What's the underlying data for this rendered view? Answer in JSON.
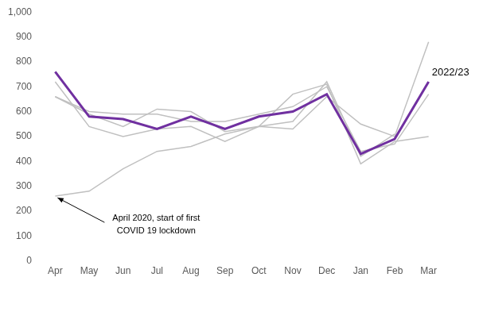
{
  "chart_data": {
    "type": "line",
    "categories": [
      "Apr",
      "May",
      "Jun",
      "Jul",
      "Aug",
      "Sep",
      "Oct",
      "Nov",
      "Dec",
      "Jan",
      "Feb",
      "Mar"
    ],
    "series": [
      {
        "color": "#c0c0c0",
        "values": [
          260,
          280,
          370,
          440,
          460,
          510,
          540,
          670,
          710,
          390,
          480,
          500
        ]
      },
      {
        "color": "#c0c0c0",
        "values": [
          720,
          540,
          500,
          530,
          540,
          480,
          540,
          530,
          660,
          550,
          500,
          880
        ]
      },
      {
        "color": "#c0c0c0",
        "values": [
          660,
          600,
          590,
          590,
          560,
          560,
          590,
          620,
          700,
          440,
          470,
          670
        ]
      },
      {
        "color": "#c0c0c0",
        "values": [
          660,
          590,
          540,
          610,
          600,
          520,
          540,
          560,
          720,
          420,
          510,
          null
        ]
      },
      {
        "name": "2022/23",
        "color": "#7030a0",
        "values": [
          760,
          580,
          570,
          530,
          580,
          530,
          580,
          600,
          670,
          430,
          490,
          720
        ]
      }
    ],
    "ylim": [
      0,
      1000
    ],
    "yticks": [
      0,
      100,
      200,
      300,
      400,
      500,
      600,
      700,
      800,
      900,
      {
        "value": 1000,
        "label": "1,000"
      }
    ],
    "grid": false,
    "annotations": [
      {
        "text": [
          "April 2020, start of first",
          "COVID 19 lockdown"
        ],
        "x": "Apr",
        "y": 260
      }
    ]
  }
}
